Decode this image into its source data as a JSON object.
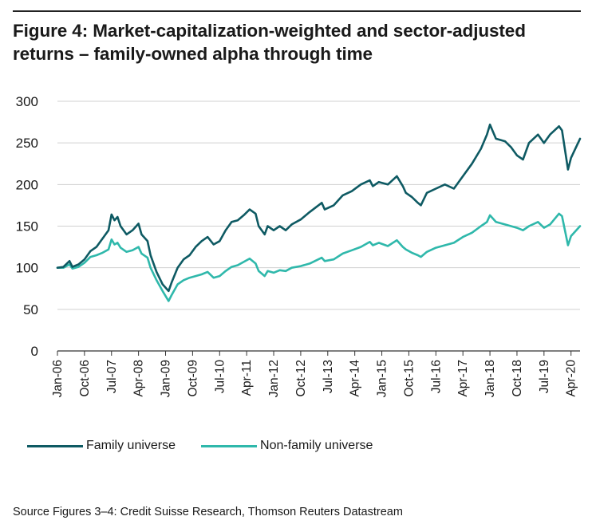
{
  "header": {
    "title_line1": "Figure 4: Market-capitalization-weighted and sector-adjusted",
    "title_line2": "returns – family-owned alpha through time"
  },
  "source": "Source Figures 3–4: Credit Suisse Research, Thomson Reuters Datastream",
  "chart_data": {
    "type": "line",
    "title": "Figure 4: Market-capitalization-weighted and sector-adjusted returns – family-owned alpha through time",
    "xlabel": "",
    "ylabel": "",
    "ylim": [
      0,
      300
    ],
    "yticks": [
      0,
      50,
      100,
      150,
      200,
      250,
      300
    ],
    "grid": true,
    "legend_position": "bottom-left",
    "xlim": [
      "2006-01",
      "2020-07"
    ],
    "xticks": [
      "Jan-06",
      "Oct-06",
      "Jul-07",
      "Apr-08",
      "Jan-09",
      "Oct-09",
      "Jul-10",
      "Apr-11",
      "Jan-12",
      "Oct-12",
      "Jul-13",
      "Apr-14",
      "Jan-15",
      "Oct-15",
      "Jul-16",
      "Apr-17",
      "Jan-18",
      "Oct-18",
      "Jul-19",
      "Apr-20"
    ],
    "series": [
      {
        "name": "Family universe",
        "color": "#0e5a63",
        "points": [
          [
            "2006-01",
            100
          ],
          [
            "2006-03",
            101
          ],
          [
            "2006-05",
            108
          ],
          [
            "2006-06",
            101
          ],
          [
            "2006-08",
            104
          ],
          [
            "2006-10",
            110
          ],
          [
            "2006-12",
            120
          ],
          [
            "2007-02",
            125
          ],
          [
            "2007-04",
            135
          ],
          [
            "2007-06",
            145
          ],
          [
            "2007-07",
            164
          ],
          [
            "2007-08",
            157
          ],
          [
            "2007-09",
            161
          ],
          [
            "2007-10",
            150
          ],
          [
            "2007-12",
            140
          ],
          [
            "2008-02",
            145
          ],
          [
            "2008-04",
            153
          ],
          [
            "2008-05",
            140
          ],
          [
            "2008-07",
            132
          ],
          [
            "2008-08",
            115
          ],
          [
            "2008-10",
            95
          ],
          [
            "2008-12",
            80
          ],
          [
            "2009-02",
            72
          ],
          [
            "2009-03",
            82
          ],
          [
            "2009-05",
            100
          ],
          [
            "2009-07",
            110
          ],
          [
            "2009-09",
            115
          ],
          [
            "2009-11",
            125
          ],
          [
            "2010-01",
            132
          ],
          [
            "2010-03",
            137
          ],
          [
            "2010-05",
            128
          ],
          [
            "2010-07",
            132
          ],
          [
            "2010-09",
            145
          ],
          [
            "2010-11",
            155
          ],
          [
            "2011-01",
            157
          ],
          [
            "2011-03",
            163
          ],
          [
            "2011-05",
            170
          ],
          [
            "2011-07",
            165
          ],
          [
            "2011-08",
            150
          ],
          [
            "2011-10",
            140
          ],
          [
            "2011-11",
            150
          ],
          [
            "2012-01",
            145
          ],
          [
            "2012-03",
            150
          ],
          [
            "2012-05",
            145
          ],
          [
            "2012-07",
            152
          ],
          [
            "2012-10",
            158
          ],
          [
            "2013-01",
            167
          ],
          [
            "2013-05",
            178
          ],
          [
            "2013-06",
            170
          ],
          [
            "2013-09",
            175
          ],
          [
            "2013-12",
            187
          ],
          [
            "2014-03",
            192
          ],
          [
            "2014-06",
            200
          ],
          [
            "2014-09",
            205
          ],
          [
            "2014-10",
            198
          ],
          [
            "2014-12",
            203
          ],
          [
            "2015-03",
            200
          ],
          [
            "2015-06",
            210
          ],
          [
            "2015-08",
            198
          ],
          [
            "2015-09",
            190
          ],
          [
            "2015-11",
            185
          ],
          [
            "2016-01",
            178
          ],
          [
            "2016-02",
            175
          ],
          [
            "2016-04",
            190
          ],
          [
            "2016-07",
            195
          ],
          [
            "2016-10",
            200
          ],
          [
            "2017-01",
            195
          ],
          [
            "2017-04",
            210
          ],
          [
            "2017-07",
            225
          ],
          [
            "2017-10",
            243
          ],
          [
            "2017-12",
            260
          ],
          [
            "2018-01",
            272
          ],
          [
            "2018-03",
            255
          ],
          [
            "2018-06",
            252
          ],
          [
            "2018-08",
            245
          ],
          [
            "2018-10",
            235
          ],
          [
            "2018-12",
            230
          ],
          [
            "2019-02",
            250
          ],
          [
            "2019-05",
            260
          ],
          [
            "2019-07",
            250
          ],
          [
            "2019-09",
            260
          ],
          [
            "2019-12",
            270
          ],
          [
            "2020-01",
            265
          ],
          [
            "2020-03",
            218
          ],
          [
            "2020-04",
            232
          ],
          [
            "2020-07",
            255
          ]
        ]
      },
      {
        "name": "Non-family universe",
        "color": "#2fb8ab",
        "points": [
          [
            "2006-01",
            100
          ],
          [
            "2006-03",
            100
          ],
          [
            "2006-05",
            104
          ],
          [
            "2006-06",
            99
          ],
          [
            "2006-08",
            101
          ],
          [
            "2006-10",
            106
          ],
          [
            "2006-12",
            113
          ],
          [
            "2007-02",
            115
          ],
          [
            "2007-04",
            118
          ],
          [
            "2007-06",
            122
          ],
          [
            "2007-07",
            134
          ],
          [
            "2007-08",
            128
          ],
          [
            "2007-09",
            130
          ],
          [
            "2007-10",
            124
          ],
          [
            "2007-12",
            119
          ],
          [
            "2008-02",
            121
          ],
          [
            "2008-04",
            125
          ],
          [
            "2008-05",
            117
          ],
          [
            "2008-07",
            112
          ],
          [
            "2008-08",
            100
          ],
          [
            "2008-10",
            85
          ],
          [
            "2008-12",
            72
          ],
          [
            "2009-02",
            60
          ],
          [
            "2009-03",
            67
          ],
          [
            "2009-05",
            80
          ],
          [
            "2009-07",
            85
          ],
          [
            "2009-09",
            88
          ],
          [
            "2009-11",
            90
          ],
          [
            "2010-01",
            92
          ],
          [
            "2010-03",
            95
          ],
          [
            "2010-05",
            88
          ],
          [
            "2010-07",
            90
          ],
          [
            "2010-09",
            96
          ],
          [
            "2010-11",
            101
          ],
          [
            "2011-01",
            103
          ],
          [
            "2011-03",
            107
          ],
          [
            "2011-05",
            111
          ],
          [
            "2011-07",
            105
          ],
          [
            "2011-08",
            96
          ],
          [
            "2011-10",
            90
          ],
          [
            "2011-11",
            96
          ],
          [
            "2012-01",
            94
          ],
          [
            "2012-03",
            97
          ],
          [
            "2012-05",
            96
          ],
          [
            "2012-07",
            100
          ],
          [
            "2012-10",
            102
          ],
          [
            "2013-01",
            105
          ],
          [
            "2013-05",
            112
          ],
          [
            "2013-06",
            108
          ],
          [
            "2013-09",
            110
          ],
          [
            "2013-12",
            117
          ],
          [
            "2014-03",
            121
          ],
          [
            "2014-06",
            125
          ],
          [
            "2014-09",
            131
          ],
          [
            "2014-10",
            127
          ],
          [
            "2014-12",
            130
          ],
          [
            "2015-03",
            126
          ],
          [
            "2015-06",
            133
          ],
          [
            "2015-08",
            125
          ],
          [
            "2015-09",
            122
          ],
          [
            "2015-11",
            118
          ],
          [
            "2016-01",
            115
          ],
          [
            "2016-02",
            113
          ],
          [
            "2016-04",
            119
          ],
          [
            "2016-07",
            124
          ],
          [
            "2016-10",
            127
          ],
          [
            "2017-01",
            130
          ],
          [
            "2017-04",
            137
          ],
          [
            "2017-07",
            142
          ],
          [
            "2017-10",
            150
          ],
          [
            "2017-12",
            155
          ],
          [
            "2018-01",
            163
          ],
          [
            "2018-03",
            155
          ],
          [
            "2018-06",
            152
          ],
          [
            "2018-08",
            150
          ],
          [
            "2018-10",
            148
          ],
          [
            "2018-12",
            145
          ],
          [
            "2019-02",
            150
          ],
          [
            "2019-05",
            155
          ],
          [
            "2019-07",
            148
          ],
          [
            "2019-09",
            152
          ],
          [
            "2019-12",
            165
          ],
          [
            "2020-01",
            162
          ],
          [
            "2020-03",
            127
          ],
          [
            "2020-04",
            138
          ],
          [
            "2020-07",
            150
          ]
        ]
      }
    ]
  }
}
